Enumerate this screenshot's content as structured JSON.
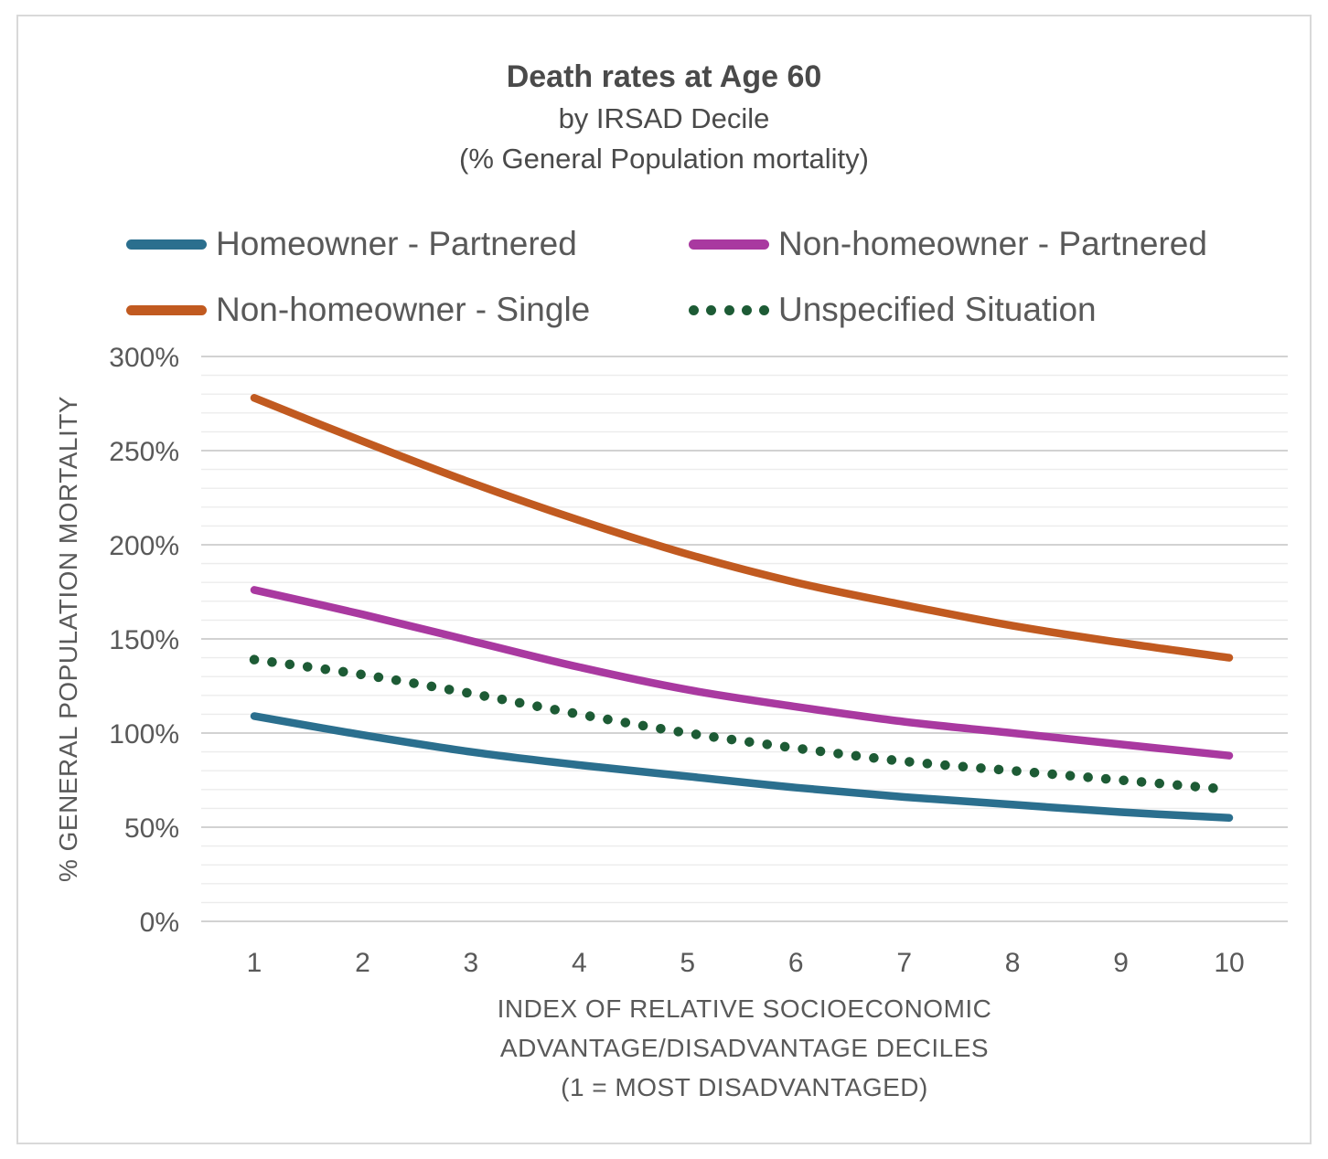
{
  "title": {
    "line1": "Death rates at Age 60",
    "line2": "by IRSAD Decile",
    "line3": "(% General Population mortality)"
  },
  "legend": [
    {
      "label": "Homeowner - Partnered",
      "color": "#2b6f8e",
      "style": "solid"
    },
    {
      "label": "Non-homeowner - Partnered",
      "color": "#a939a0",
      "style": "solid"
    },
    {
      "label": "Non-homeowner - Single",
      "color": "#c15a20",
      "style": "solid"
    },
    {
      "label": "Unspecified Situation",
      "color": "#1d5b35",
      "style": "dotted"
    }
  ],
  "chart_data": {
    "type": "line",
    "title": "Death rates at Age 60 by IRSAD Decile (% General Population mortality)",
    "x": [
      1,
      2,
      3,
      4,
      5,
      6,
      7,
      8,
      9,
      10
    ],
    "x_tick_labels": [
      "1",
      "2",
      "3",
      "4",
      "5",
      "6",
      "7",
      "8",
      "9",
      "10"
    ],
    "series": [
      {
        "name": "Homeowner - Partnered",
        "color": "#2b6f8e",
        "line_style": "solid",
        "values": [
          109,
          99,
          90,
          83,
          77,
          71,
          66,
          62,
          58,
          55
        ]
      },
      {
        "name": "Non-homeowner - Partnered",
        "color": "#a939a0",
        "line_style": "solid",
        "values": [
          176,
          163,
          149,
          135,
          123,
          114,
          106,
          100,
          94,
          88
        ]
      },
      {
        "name": "Non-homeowner - Single",
        "color": "#c15a20",
        "line_style": "solid",
        "values": [
          278,
          255,
          233,
          213,
          195,
          180,
          168,
          157,
          148,
          140
        ]
      },
      {
        "name": "Unspecified Situation",
        "color": "#1d5b35",
        "line_style": "dotted",
        "values": [
          139,
          131,
          121,
          110,
          100,
          92,
          85,
          80,
          75,
          70
        ]
      }
    ],
    "ylabel": "% GENERAL POPULATION MORTALITY",
    "xlabel": "INDEX OF RELATIVE SOCIOECONOMIC ADVANTAGE/DISADVANTAGE DECILES (1 = MOST DISADVANTAGED)",
    "xlabel_lines": [
      "INDEX OF RELATIVE SOCIOECONOMIC",
      "ADVANTAGE/DISADVANTAGE DECILES",
      "(1 = MOST DISADVANTAGED)"
    ],
    "ylim": [
      0,
      300
    ],
    "y_major_step": 50,
    "y_minor_step": 10,
    "y_tick_labels": [
      "0%",
      "50%",
      "100%",
      "150%",
      "200%",
      "250%",
      "300%"
    ],
    "grid": true,
    "legend_position": "top",
    "colors": {
      "tick_text": "#595959",
      "axis_title_text": "#595959",
      "title_text": "#4a4a4a",
      "grid_minor": "#ececec",
      "grid_major": "#d2d2d2",
      "frame_border": "#d9d9d9"
    }
  }
}
